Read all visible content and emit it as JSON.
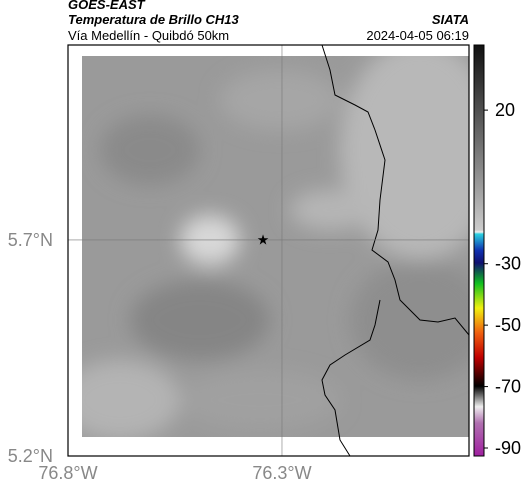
{
  "header": {
    "title": "GOES-EAST",
    "subtitle": "Temperatura de Brillo CH13",
    "location": "Vía Medellín - Quibdó 50km",
    "source": "SIATA",
    "timestamp": "2024-04-05 06:19"
  },
  "map": {
    "lonlim": [
      -76.8,
      -75.863
    ],
    "latlim": [
      5.2,
      6.151
    ],
    "lonticks": [
      {
        "value": -76.8,
        "label": "76.8°W"
      },
      {
        "value": -76.3,
        "label": "76.3°W"
      }
    ],
    "latticks": [
      {
        "value": 5.2,
        "label": "5.2°N"
      },
      {
        "value": 5.7,
        "label": "5.7°N"
      }
    ]
  },
  "colorbar": {
    "lim": [
      -92.6,
      41.2
    ],
    "ticks": [
      20,
      -30,
      -50,
      -70,
      -90
    ]
  }
}
